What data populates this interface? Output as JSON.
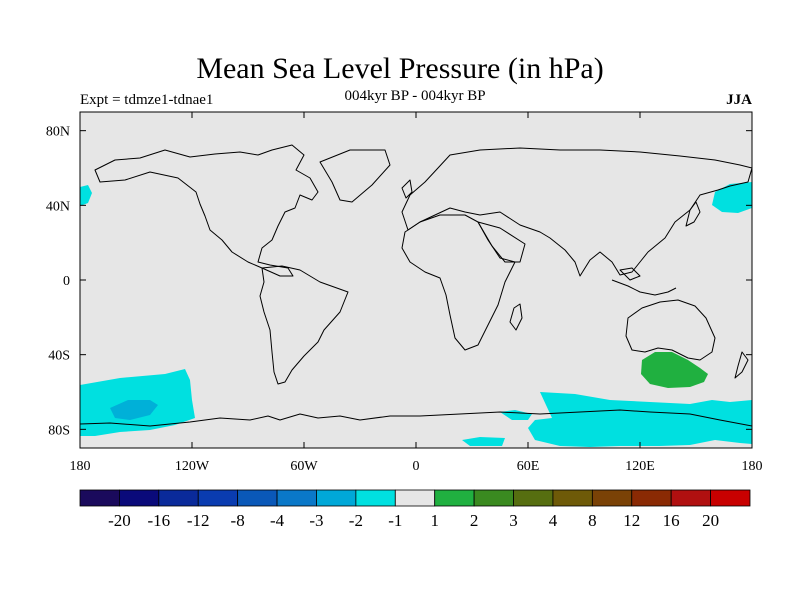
{
  "title": "Mean Sea Level Pressure (in hPa)",
  "experiment": "Expt = tdmze1-tdnae1",
  "period": "004kyr BP - 004kyr BP",
  "season": "JJA",
  "colors": {
    "background": "#e6e6e6",
    "neg1": "#00e0e0",
    "neg2": "#00b0d8",
    "pos1": "#20b040",
    "coast": "#000000"
  },
  "x_axis": {
    "labels": [
      "180",
      "120W",
      "60W",
      "0",
      "60E",
      "120E",
      "180"
    ],
    "lons": [
      -180,
      -120,
      -60,
      0,
      60,
      120,
      180
    ]
  },
  "y_axis": {
    "labels": [
      "80N",
      "40N",
      "0",
      "40S",
      "80S"
    ],
    "lats": [
      80,
      40,
      0,
      -40,
      -80
    ]
  },
  "colorbar": {
    "colors": [
      "#1a0a5c",
      "#0a0a7a",
      "#0a2a9a",
      "#0a3cb0",
      "#0a58b8",
      "#0a78c8",
      "#00a8d8",
      "#00e0e0",
      "#e6e6e6",
      "#20b040",
      "#3a8a20",
      "#566e10",
      "#6e5a08",
      "#7a4206",
      "#8a2a04",
      "#b01010",
      "#c80000"
    ],
    "labels": [
      "-20",
      "-16",
      "-12",
      "-8",
      "-4",
      "-3",
      "-2",
      "-1",
      "1",
      "2",
      "3",
      "4",
      "8",
      "12",
      "16",
      "20"
    ]
  },
  "anomaly_regions": [
    {
      "name": "north-pacific-west-negative",
      "level": "-1 to -2"
    },
    {
      "name": "north-pacific-east-negative",
      "level": "-1 to -2"
    },
    {
      "name": "south-pacific-negative",
      "level": "-1 to -2"
    },
    {
      "name": "south-pacific-core-negative",
      "level": "-2 to -3"
    },
    {
      "name": "southern-ocean-negative",
      "level": "-1 to -2"
    },
    {
      "name": "south-australia-positive",
      "level": "1 to 2"
    }
  ]
}
